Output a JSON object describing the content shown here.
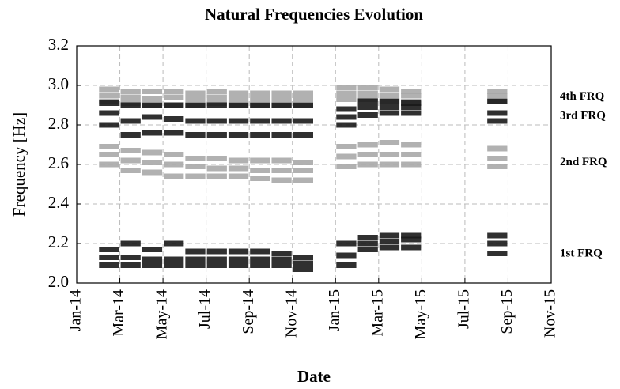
{
  "chart_data": {
    "type": "scatter",
    "title": "Natural Frequencies Evolution",
    "x_label": "Date",
    "y_label": "Frequency [Hz]",
    "x": [
      "2014-02",
      "2014-02",
      "2014-02",
      "2014-03",
      "2014-03",
      "2014-03",
      "2014-04",
      "2014-04",
      "2014-04",
      "2014-05",
      "2014-05",
      "2014-05",
      "2014-06",
      "2014-06",
      "2014-06",
      "2014-07",
      "2014-07",
      "2014-07",
      "2014-08",
      "2014-08",
      "2014-08",
      "2014-09",
      "2014-09",
      "2014-09",
      "2014-10",
      "2014-10",
      "2014-10",
      "2014-11",
      "2014-11",
      "2014-11",
      "2015-01",
      "2015-01",
      "2015-01",
      "2015-02",
      "2015-02",
      "2015-02",
      "2015-03",
      "2015-03",
      "2015-03",
      "2015-04",
      "2015-04",
      "2015-04",
      "2015-08",
      "2015-08",
      "2015-08"
    ],
    "series": [
      {
        "name": "4th FRQ",
        "color": "#a9a9a9",
        "values": [
          2.92,
          2.95,
          2.98,
          2.91,
          2.94,
          2.97,
          2.9,
          2.93,
          2.97,
          2.9,
          2.94,
          2.97,
          2.9,
          2.93,
          2.96,
          2.91,
          2.94,
          2.97,
          2.9,
          2.93,
          2.96,
          2.9,
          2.93,
          2.96,
          2.9,
          2.93,
          2.96,
          2.9,
          2.93,
          2.96,
          2.93,
          2.96,
          2.99,
          2.93,
          2.96,
          2.99,
          2.92,
          2.95,
          2.98,
          2.92,
          2.95,
          2.97,
          2.92,
          2.95,
          2.97
        ]
      },
      {
        "name": "3rd FRQ",
        "color": "#1a1a1a",
        "values": [
          2.8,
          2.86,
          2.91,
          2.75,
          2.82,
          2.9,
          2.76,
          2.84,
          2.9,
          2.76,
          2.83,
          2.9,
          2.75,
          2.82,
          2.9,
          2.75,
          2.82,
          2.9,
          2.75,
          2.82,
          2.9,
          2.75,
          2.82,
          2.9,
          2.75,
          2.82,
          2.9,
          2.75,
          2.82,
          2.9,
          2.8,
          2.84,
          2.88,
          2.85,
          2.89,
          2.92,
          2.86,
          2.89,
          2.92,
          2.86,
          2.89,
          2.91,
          2.82,
          2.86,
          2.92
        ]
      },
      {
        "name": "2nd FRQ",
        "color": "#a9a9a9",
        "values": [
          2.6,
          2.65,
          2.69,
          2.57,
          2.62,
          2.67,
          2.56,
          2.61,
          2.66,
          2.54,
          2.6,
          2.65,
          2.54,
          2.59,
          2.63,
          2.54,
          2.58,
          2.63,
          2.54,
          2.58,
          2.62,
          2.53,
          2.57,
          2.62,
          2.52,
          2.57,
          2.62,
          2.52,
          2.57,
          2.61,
          2.59,
          2.64,
          2.69,
          2.6,
          2.65,
          2.7,
          2.6,
          2.65,
          2.71,
          2.6,
          2.65,
          2.7,
          2.59,
          2.63,
          2.68
        ]
      },
      {
        "name": "1st FRQ",
        "color": "#1a1a1a",
        "values": [
          2.09,
          2.13,
          2.17,
          2.09,
          2.13,
          2.2,
          2.09,
          2.12,
          2.17,
          2.09,
          2.12,
          2.2,
          2.09,
          2.12,
          2.16,
          2.09,
          2.12,
          2.16,
          2.09,
          2.12,
          2.16,
          2.09,
          2.12,
          2.16,
          2.09,
          2.12,
          2.15,
          2.07,
          2.1,
          2.13,
          2.09,
          2.14,
          2.2,
          2.17,
          2.2,
          2.23,
          2.18,
          2.21,
          2.24,
          2.18,
          2.22,
          2.24,
          2.15,
          2.2,
          2.24
        ]
      }
    ],
    "xlim": [
      "2014-01",
      "2015-11"
    ],
    "xticks": [
      {
        "value": "2014-01",
        "label": "Jan-14"
      },
      {
        "value": "2014-03",
        "label": "Mar-14"
      },
      {
        "value": "2014-05",
        "label": "May-14"
      },
      {
        "value": "2014-07",
        "label": "Jul-14"
      },
      {
        "value": "2014-09",
        "label": "Sep-14"
      },
      {
        "value": "2014-11",
        "label": "Nov-14"
      },
      {
        "value": "2015-01",
        "label": "Jan-15"
      },
      {
        "value": "2015-03",
        "label": "Mar-15"
      },
      {
        "value": "2015-05",
        "label": "May-15"
      },
      {
        "value": "2015-07",
        "label": "Jul-15"
      },
      {
        "value": "2015-09",
        "label": "Sep-15"
      },
      {
        "value": "2015-11",
        "label": "Nov-15"
      }
    ],
    "ylim": [
      2,
      3.2
    ],
    "yticks": [
      {
        "value": 2,
        "label": "2.0"
      },
      2.2,
      2.4,
      2.6,
      2.8,
      {
        "value": 3,
        "label": "3.0"
      },
      3.2
    ],
    "grid": true
  }
}
